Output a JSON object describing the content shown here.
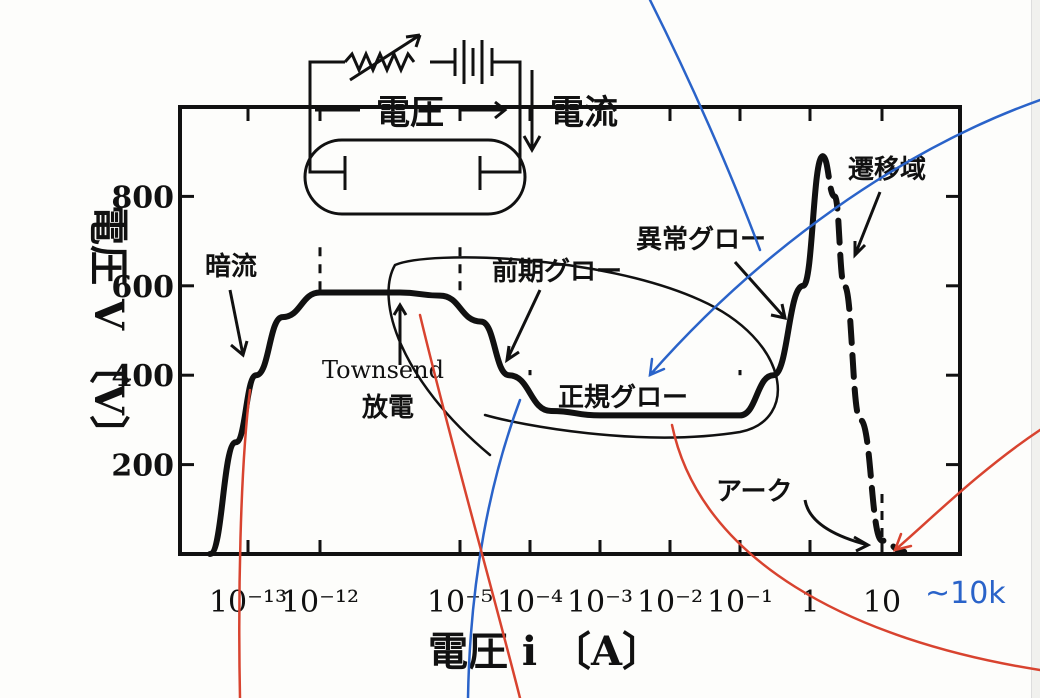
{
  "chart_data": {
    "type": "line",
    "xlabel": "電圧 i 〔A〕",
    "ylabel": "電圧 V 〔V〕",
    "x_scale": "log",
    "xlim": [
      3e-14,
      40
    ],
    "ylim": [
      0,
      1000
    ],
    "x_ticks": [
      1e-13,
      1e-12,
      1e-05,
      0.0001,
      0.001,
      0.01,
      0.1,
      1,
      10
    ],
    "x_tick_labels": [
      "10⁻¹³",
      "10⁻¹²",
      "10⁻⁵",
      "10⁻⁴",
      "10⁻³",
      "10⁻²",
      "10⁻¹",
      "1",
      "10"
    ],
    "y_ticks": [
      200,
      400,
      600,
      800
    ],
    "y_tick_labels": [
      "200",
      "400",
      "600",
      "800"
    ],
    "series": [
      {
        "style": "solid",
        "points": [
          [
            5e-14,
            0
          ],
          [
            8e-14,
            250
          ],
          [
            1.3e-13,
            400
          ],
          [
            3e-13,
            530
          ],
          [
            1e-12,
            585
          ],
          [
            1e-08,
            585
          ],
          [
            1e-06,
            578
          ],
          [
            2e-05,
            520
          ],
          [
            5e-05,
            400
          ],
          [
            0.0002,
            320
          ],
          [
            0.001,
            310
          ],
          [
            0.1,
            310
          ],
          [
            0.3,
            400
          ],
          [
            0.8,
            600
          ],
          [
            1.5,
            890
          ]
        ]
      },
      {
        "style": "dashed",
        "points": [
          [
            1.5,
            890
          ],
          [
            2.2,
            800
          ],
          [
            3,
            600
          ],
          [
            5,
            300
          ],
          [
            10,
            30
          ],
          [
            15,
            5
          ]
        ]
      },
      {
        "style": "dashed",
        "points": [
          [
            5e-14,
            0
          ],
          [
            15,
            0
          ]
        ]
      }
    ],
    "annotations": {
      "dark_current": "暗流",
      "townsend_1": "Townsend",
      "townsend_2": "放電",
      "pre_glow": "前期グロー",
      "normal_glow": "正規グロー",
      "abnormal_glow": "異常グロー",
      "transition": "遷移域",
      "arc": "アーク"
    }
  },
  "circuit": {
    "voltage_label": "電圧",
    "current_label": "電流"
  },
  "handwritten_note": "~10k"
}
